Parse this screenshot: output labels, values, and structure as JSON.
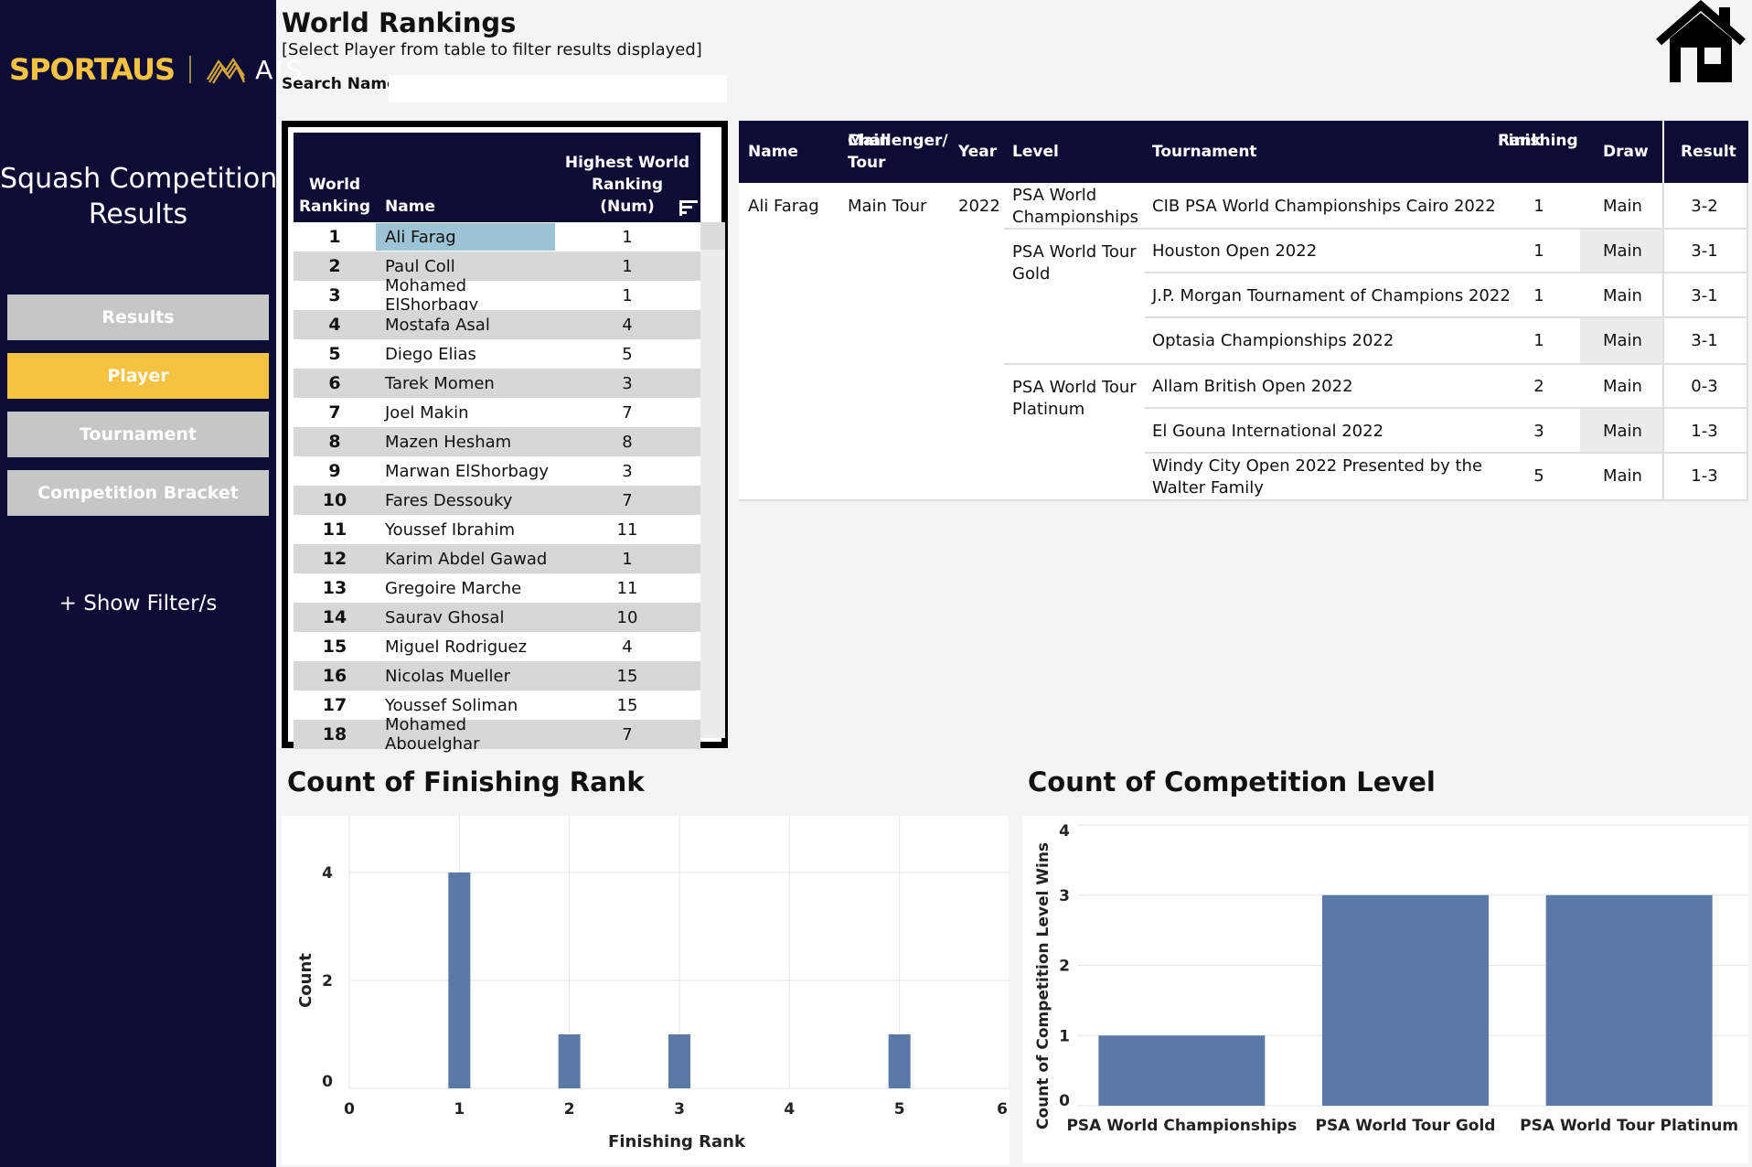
{
  "sidebar": {
    "logo_left": "SPORTAUS",
    "logo_right": "AIS",
    "title_line1": "Squash Competition &",
    "title_line2": "Results",
    "nav": [
      {
        "label": "Results",
        "active": false
      },
      {
        "label": "Player",
        "active": true
      },
      {
        "label": "Tournament",
        "active": false
      },
      {
        "label": "Competition Bracket",
        "active": false
      }
    ],
    "filter_link": "+ Show Filter/s"
  },
  "header": {
    "title": "World Rankings",
    "subtitle": "[Select Player from table to filter results displayed]",
    "search_label": "Search Name",
    "search_value": ""
  },
  "rankings": {
    "headers": {
      "rank_line1": "World",
      "rank_line2": "Ranking",
      "name": "Name",
      "highest_line1": "Highest World",
      "highest_line2": "Ranking",
      "highest_line3": "(Num)"
    },
    "selected": "Ali Farag",
    "rows": [
      {
        "rank": "1",
        "name": "Ali Farag",
        "highest": "1"
      },
      {
        "rank": "2",
        "name": "Paul Coll",
        "highest": "1"
      },
      {
        "rank": "3",
        "name": "Mohamed ElShorbagy",
        "highest": "1"
      },
      {
        "rank": "4",
        "name": "Mostafa Asal",
        "highest": "4"
      },
      {
        "rank": "5",
        "name": "Diego Elias",
        "highest": "5"
      },
      {
        "rank": "6",
        "name": "Tarek Momen",
        "highest": "3"
      },
      {
        "rank": "7",
        "name": "Joel Makin",
        "highest": "7"
      },
      {
        "rank": "8",
        "name": "Mazen Hesham",
        "highest": "8"
      },
      {
        "rank": "9",
        "name": "Marwan ElShorbagy",
        "highest": "3"
      },
      {
        "rank": "10",
        "name": "Fares Dessouky",
        "highest": "7"
      },
      {
        "rank": "11",
        "name": "Youssef Ibrahim",
        "highest": "11"
      },
      {
        "rank": "12",
        "name": "Karim Abdel Gawad",
        "highest": "1"
      },
      {
        "rank": "13",
        "name": "Gregoire Marche",
        "highest": "11"
      },
      {
        "rank": "14",
        "name": "Saurav Ghosal",
        "highest": "10"
      },
      {
        "rank": "15",
        "name": "Miguel Rodriguez",
        "highest": "4"
      },
      {
        "rank": "16",
        "name": "Nicolas Mueller",
        "highest": "15"
      },
      {
        "rank": "17",
        "name": "Youssef Soliman",
        "highest": "15"
      },
      {
        "rank": "18",
        "name": "Mohamed Abouelghar",
        "highest": "7"
      }
    ]
  },
  "results": {
    "headers": {
      "name": "Name",
      "tour_line1": "Challenger/",
      "tour_line2": "Main Tour",
      "year": "Year",
      "level": "Level",
      "tournament": "Tournament",
      "finish_line1": "Finishing",
      "finish_line2": "Rank",
      "draw": "Draw",
      "result": "Result"
    },
    "player": "Ali Farag",
    "tour": "Main Tour",
    "year": "2022",
    "levels": [
      {
        "line1": "PSA World",
        "line2": "Championships"
      },
      {
        "line1": "PSA World Tour",
        "line2": "Gold"
      },
      {
        "line1": "PSA World Tour",
        "line2": "Platinum"
      }
    ],
    "rows": [
      {
        "tournament": "CIB PSA World Championships Cairo 2022",
        "tournament2": "",
        "rank": "1",
        "draw": "Main",
        "result": "3-2"
      },
      {
        "tournament": "Houston Open 2022",
        "tournament2": "",
        "rank": "1",
        "draw": "Main",
        "result": "3-1"
      },
      {
        "tournament": "J.P. Morgan Tournament of Champions 2022",
        "tournament2": "",
        "rank": "1",
        "draw": "Main",
        "result": "3-1"
      },
      {
        "tournament": "Optasia Championships 2022",
        "tournament2": "",
        "rank": "1",
        "draw": "Main",
        "result": "3-1"
      },
      {
        "tournament": "Allam British Open 2022",
        "tournament2": "",
        "rank": "2",
        "draw": "Main",
        "result": "0-3"
      },
      {
        "tournament": "El Gouna International 2022",
        "tournament2": "",
        "rank": "3",
        "draw": "Main",
        "result": "1-3"
      },
      {
        "tournament": "Windy City Open 2022 Presented by the",
        "tournament2": "Walter Family",
        "rank": "5",
        "draw": "Main",
        "result": "1-3"
      }
    ]
  },
  "chart_data": [
    {
      "type": "bar",
      "title": "Count of Finishing Rank",
      "xlabel": "Finishing Rank",
      "ylabel": "Count",
      "x": [
        1,
        2,
        3,
        5
      ],
      "values": [
        4,
        1,
        1,
        1
      ],
      "xlim": [
        0,
        6
      ],
      "ylim": [
        0,
        4
      ],
      "xticks": [
        "0",
        "1",
        "2",
        "3",
        "4",
        "5",
        "6"
      ],
      "yticks": [
        "0",
        "2",
        "4"
      ],
      "grid": true,
      "color": "#5b79a6"
    },
    {
      "type": "bar",
      "title": "Count of Competition Level",
      "xlabel": "",
      "ylabel": "Count of Competition Level Wins",
      "categories": [
        "PSA World Championships",
        "PSA World Tour Gold",
        "PSA World Tour Platinum"
      ],
      "values": [
        1,
        3,
        3
      ],
      "ylim": [
        0,
        4
      ],
      "yticks": [
        "0",
        "1",
        "2",
        "3",
        "4"
      ],
      "grid": true,
      "color": "#5b79a6"
    }
  ],
  "colors": {
    "navy": "#0c0c35",
    "gold": "#f5c242",
    "grey_btn": "#c6c6c6",
    "selected": "#9dc4d4",
    "bar": "#5b79a6"
  },
  "icons": {
    "home": "home-icon",
    "sort": "sort-icon",
    "logo_mark": "ais-wing-icon"
  }
}
